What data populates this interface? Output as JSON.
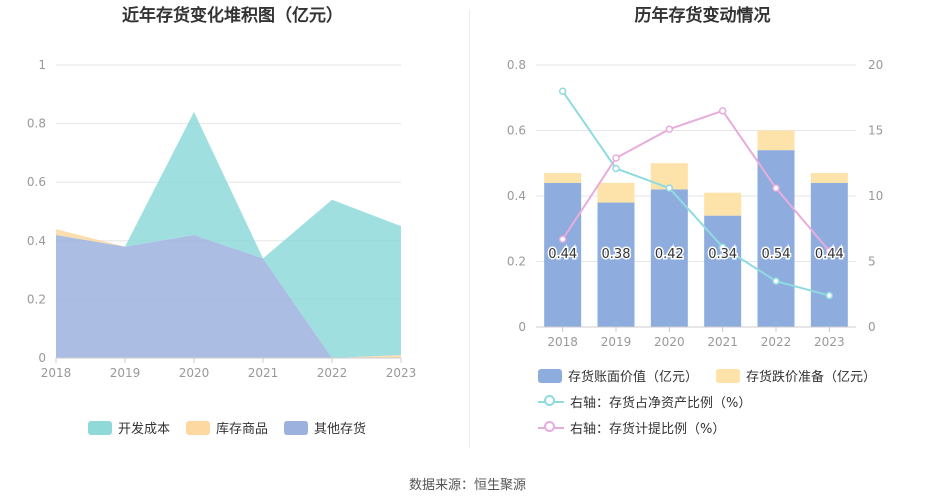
{
  "colors": {
    "kaifa": "#8fd9d9",
    "kucun": "#fdd9a1",
    "qita": "#9db1df",
    "book_value": "#8eadde",
    "impairment": "#fde2a9",
    "line_ratio_asset": "#8fdbe0",
    "line_ratio_provision": "#e8acdc"
  },
  "chart_data": [
    {
      "type": "area",
      "title": "近年存货变化堆积图（亿元）",
      "categories": [
        "2018",
        "2019",
        "2020",
        "2021",
        "2022",
        "2023"
      ],
      "ylim": [
        0,
        1
      ],
      "yticks": [
        "0",
        "0.2",
        "0.4",
        "0.6",
        "0.8",
        "1"
      ],
      "stacked": true,
      "series": [
        {
          "name": "其他存货",
          "color_key": "qita",
          "values": [
            0.42,
            0.38,
            0.42,
            0.34,
            0.0,
            0.0
          ]
        },
        {
          "name": "库存商品",
          "color_key": "kucun",
          "values": [
            0.02,
            0.0,
            0.0,
            0.0,
            0.0,
            0.01
          ]
        },
        {
          "name": "开发成本",
          "color_key": "kaifa",
          "values": [
            0.0,
            0.0,
            0.42,
            0.0,
            0.54,
            0.44
          ]
        }
      ],
      "legend": [
        "开发成本",
        "库存商品",
        "其他存货"
      ],
      "legend_position": "bottom"
    },
    {
      "type": "bar",
      "title": "历年存货变动情况",
      "categories": [
        "2018",
        "2019",
        "2020",
        "2021",
        "2022",
        "2023"
      ],
      "ylim_left": [
        0,
        0.8
      ],
      "yticks_left": [
        "0",
        "0.2",
        "0.4",
        "0.6",
        "0.8"
      ],
      "ylim_right": [
        0,
        20
      ],
      "yticks_right": [
        "0",
        "5",
        "10",
        "15",
        "20"
      ],
      "bars": [
        {
          "name": "存货账面价值（亿元）",
          "color_key": "book_value",
          "values": [
            0.44,
            0.38,
            0.42,
            0.34,
            0.54,
            0.44
          ],
          "labels": [
            "0.44",
            "0.38",
            "0.42",
            "0.34",
            "0.54",
            "0.44"
          ]
        },
        {
          "name": "存货跌价准备（亿元）",
          "color_key": "impairment",
          "values": [
            0.03,
            0.06,
            0.08,
            0.07,
            0.06,
            0.03
          ]
        }
      ],
      "lines": [
        {
          "name": "右轴：存货占净资产比例（%）",
          "color_key": "line_ratio_asset",
          "values": [
            18.0,
            12.1,
            10.6,
            6.1,
            3.5,
            2.4
          ]
        },
        {
          "name": "右轴：存货计提比例（%）",
          "color_key": "line_ratio_provision",
          "values": [
            6.7,
            12.9,
            15.1,
            16.5,
            10.6,
            5.8
          ]
        }
      ],
      "legend_position": "bottom"
    }
  ],
  "source": "数据来源：恒生聚源"
}
